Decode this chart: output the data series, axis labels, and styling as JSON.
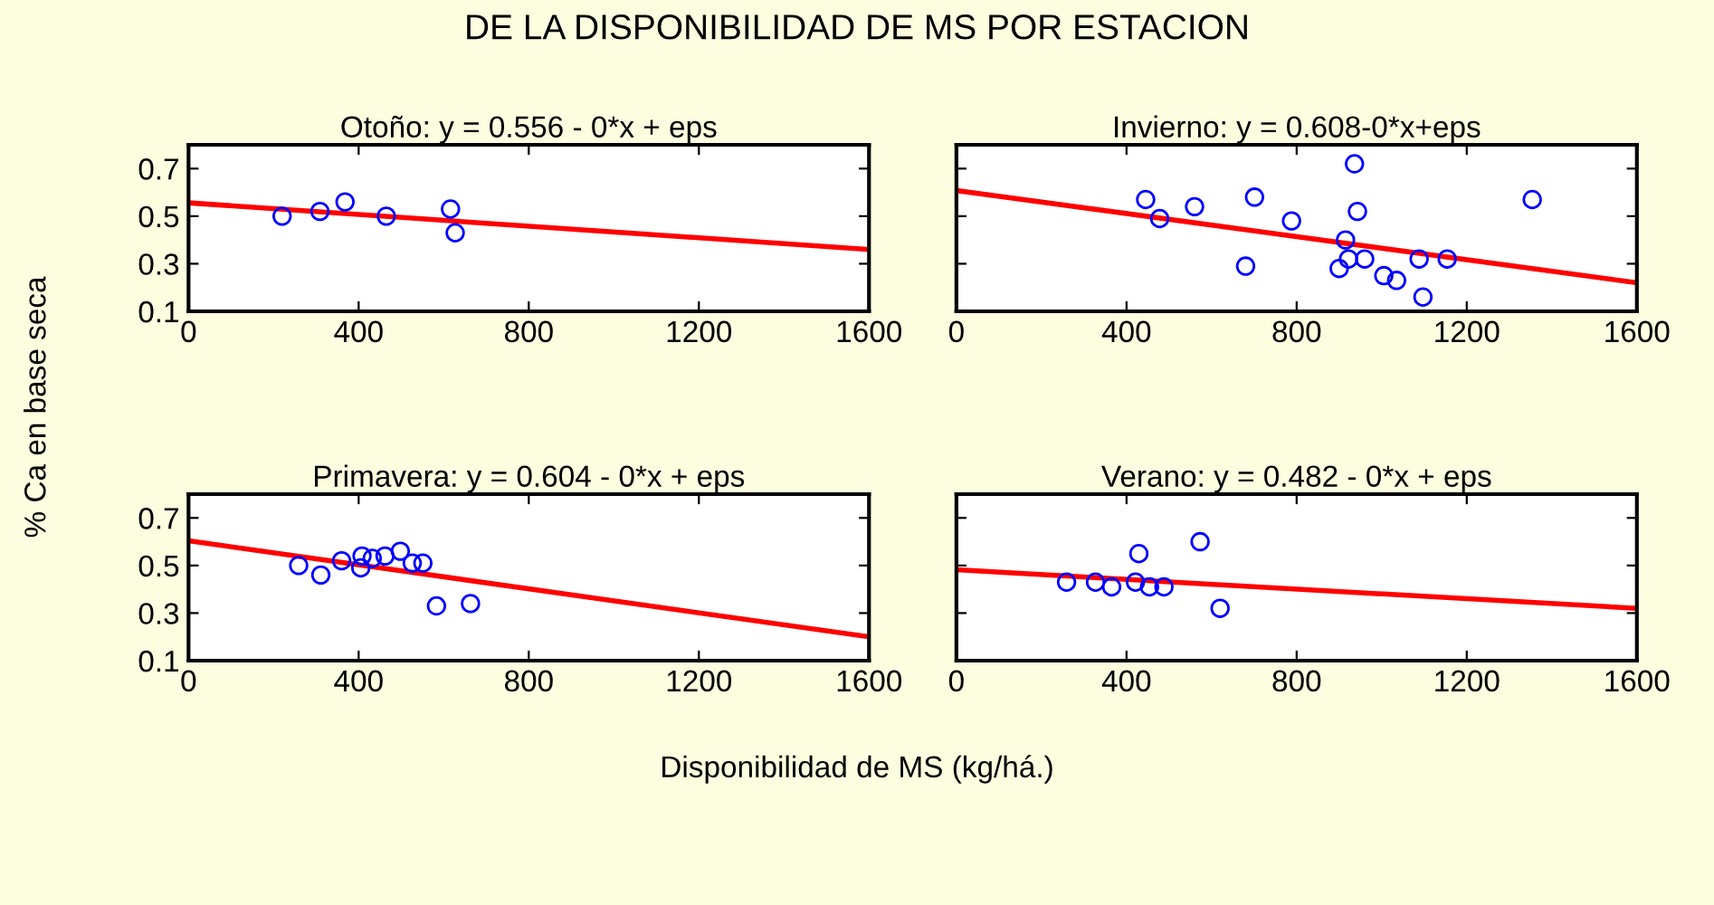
{
  "chart_data": [
    {
      "type": "scatter",
      "title": "Otoño: y = 0.556 - 0*x + eps",
      "annotations": [
        "DE LA DISPONIBILIDAD DE MS POR ESTACION"
      ],
      "xlabel": "Disponibilidad de MS (kg/há.)",
      "ylabel": "% Ca en base seca",
      "xlim": [
        0,
        1600
      ],
      "xticks": [
        0,
        400,
        800,
        1200,
        1600
      ],
      "ylim": [
        0.1,
        0.8
      ],
      "yticks": [
        0.1,
        0.3,
        0.5,
        0.7
      ],
      "grid": false,
      "legend": false,
      "series": [
        {
          "type": "scatter",
          "marker": "circle",
          "color": "#0000ff",
          "x": [
            220,
            309,
            368,
            465,
            616,
            627
          ],
          "values": [
            0.5,
            0.52,
            0.56,
            0.5,
            0.53,
            0.43
          ]
        },
        {
          "type": "line",
          "color": "#ff0000",
          "x": [
            0,
            1600
          ],
          "values": [
            0.556,
            0.36
          ]
        }
      ]
    },
    {
      "type": "scatter",
      "title": "Invierno: y = 0.608-0*x+eps",
      "xlim": [
        0,
        1600
      ],
      "xticks": [
        0,
        400,
        800,
        1200,
        1600
      ],
      "ylim": [
        0.1,
        0.8
      ],
      "yticks": [
        0.1,
        0.3,
        0.5,
        0.7
      ],
      "tick_labels": "x",
      "grid": false,
      "legend": false,
      "series": [
        {
          "type": "scatter",
          "marker": "circle",
          "color": "#0000ff",
          "x": [
            445,
            478,
            560,
            701,
            788,
            680,
            936,
            943,
            915,
            922,
            900,
            960,
            1005,
            1035,
            1088,
            1097,
            1154,
            1354
          ],
          "values": [
            0.57,
            0.49,
            0.54,
            0.58,
            0.48,
            0.29,
            0.72,
            0.52,
            0.4,
            0.32,
            0.28,
            0.32,
            0.25,
            0.23,
            0.32,
            0.16,
            0.32,
            0.57
          ]
        },
        {
          "type": "line",
          "color": "#ff0000",
          "x": [
            0,
            1600
          ],
          "values": [
            0.608,
            0.22
          ]
        }
      ]
    },
    {
      "type": "scatter",
      "title": "Primavera: y = 0.604 - 0*x + eps",
      "xlim": [
        0,
        1600
      ],
      "xticks": [
        0,
        400,
        800,
        1200,
        1600
      ],
      "ylim": [
        0.1,
        0.8
      ],
      "yticks": [
        0.1,
        0.3,
        0.5,
        0.7
      ],
      "grid": false,
      "legend": false,
      "series": [
        {
          "type": "scatter",
          "marker": "circle",
          "color": "#0000ff",
          "x": [
            259,
            311,
            360,
            408,
            405,
            432,
            462,
            498,
            526,
            551,
            583,
            663
          ],
          "values": [
            0.5,
            0.46,
            0.52,
            0.54,
            0.49,
            0.53,
            0.54,
            0.56,
            0.51,
            0.51,
            0.33,
            0.34
          ]
        },
        {
          "type": "line",
          "color": "#ff0000",
          "x": [
            0,
            1600
          ],
          "values": [
            0.604,
            0.2
          ]
        }
      ]
    },
    {
      "type": "scatter",
      "title": "Verano: y = 0.482 - 0*x + eps",
      "xlim": [
        0,
        1600
      ],
      "xticks": [
        0,
        400,
        800,
        1200,
        1600
      ],
      "ylim": [
        0.1,
        0.8
      ],
      "yticks": [
        0.1,
        0.3,
        0.5,
        0.7
      ],
      "tick_labels": "x",
      "grid": false,
      "legend": false,
      "series": [
        {
          "type": "scatter",
          "marker": "circle",
          "color": "#0000ff",
          "x": [
            259,
            327,
            365,
            421,
            429,
            454,
            488,
            573,
            620
          ],
          "values": [
            0.43,
            0.43,
            0.41,
            0.43,
            0.55,
            0.41,
            0.41,
            0.6,
            0.32
          ]
        },
        {
          "type": "line",
          "color": "#ff0000",
          "x": [
            0,
            1600
          ],
          "values": [
            0.482,
            0.32
          ]
        }
      ]
    }
  ]
}
